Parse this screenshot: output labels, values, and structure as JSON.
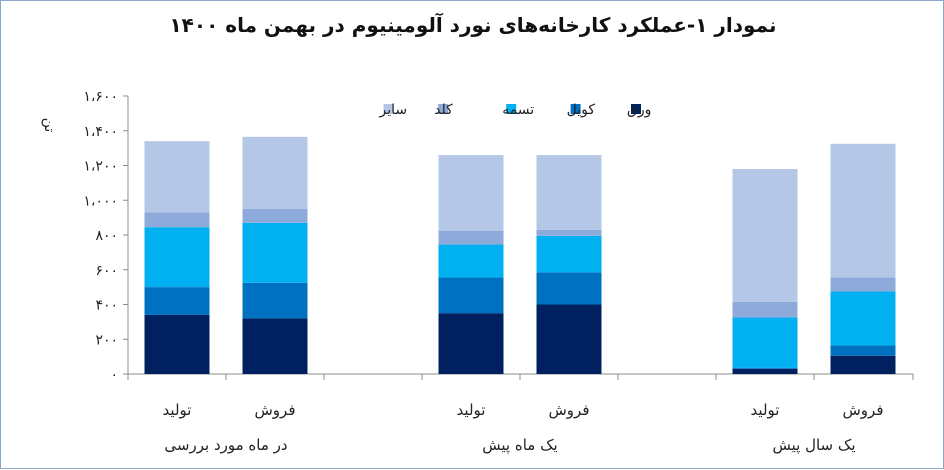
{
  "chart_data": {
    "type": "bar",
    "stacked": true,
    "title": "نمودار ۱-عملکرد کارخانه‌های نورد آلومینیوم در بهمن ماه ۱۴۰۰",
    "ylabel": "تن",
    "ylim": [
      0,
      1600
    ],
    "yticks": [
      0,
      200,
      400,
      600,
      800,
      1000,
      1200,
      1400,
      1600
    ],
    "ytick_labels": [
      "۰",
      "۲۰۰",
      "۴۰۰",
      "۶۰۰",
      "۸۰۰",
      "۱،۰۰۰",
      "۱،۲۰۰",
      "۱،۴۰۰",
      "۱،۶۰۰"
    ],
    "grid": false,
    "legend_position": "top-center",
    "categories": [
      "تولید",
      "فروش",
      "تولید",
      "فروش",
      "تولید",
      "فروش"
    ],
    "groups": [
      {
        "label": "در ماه مورد بررسی",
        "categories": [
          "تولید",
          "فروش"
        ]
      },
      {
        "label": "یک ماه پیش",
        "categories": [
          "تولید",
          "فروش"
        ]
      },
      {
        "label": "یک سال پیش",
        "categories": [
          "تولید",
          "فروش"
        ]
      }
    ],
    "series": [
      {
        "name": "ورق",
        "color": "#002060",
        "values": [
          340,
          320,
          350,
          400,
          30,
          105
        ]
      },
      {
        "name": "کویل",
        "color": "#0070c0",
        "values": [
          160,
          205,
          205,
          185,
          5,
          60
        ]
      },
      {
        "name": "تسمه",
        "color": "#00b0f0",
        "values": [
          345,
          345,
          190,
          210,
          290,
          310
        ]
      },
      {
        "name": "کلد",
        "color": "#8eaadb",
        "values": [
          85,
          80,
          80,
          35,
          90,
          80
        ]
      },
      {
        "name": "سایر",
        "color": "#b4c7e7",
        "values": [
          410,
          415,
          435,
          430,
          765,
          770
        ]
      }
    ]
  }
}
